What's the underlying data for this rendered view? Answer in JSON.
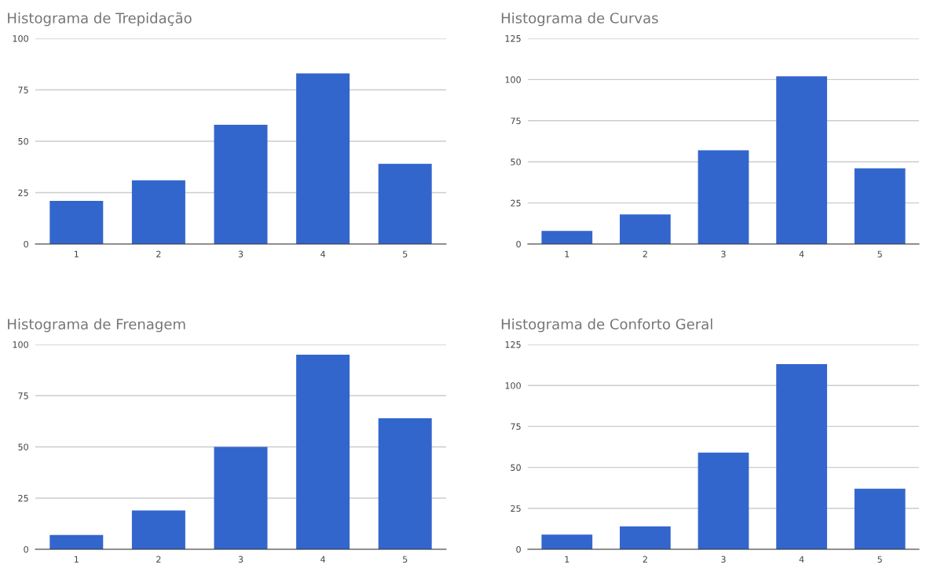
{
  "chart_data": [
    {
      "type": "bar",
      "title": "Histograma de Trepidação",
      "categories": [
        "1",
        "2",
        "3",
        "4",
        "5"
      ],
      "values": [
        21,
        31,
        58,
        83,
        39
      ],
      "color": "#3366cc",
      "ylim": [
        0,
        100
      ],
      "yticks": [
        0,
        25,
        50,
        75,
        100
      ],
      "grid": "y",
      "legend": false
    },
    {
      "type": "bar",
      "title": "Histograma de Curvas",
      "categories": [
        "1",
        "2",
        "3",
        "4",
        "5"
      ],
      "values": [
        8,
        18,
        57,
        102,
        46
      ],
      "color": "#3366cc",
      "ylim": [
        0,
        125
      ],
      "yticks": [
        0,
        25,
        50,
        75,
        100,
        125
      ],
      "grid": "y",
      "legend": false
    },
    {
      "type": "bar",
      "title": "Histograma de Frenagem",
      "categories": [
        "1",
        "2",
        "3",
        "4",
        "5"
      ],
      "values": [
        7,
        19,
        50,
        95,
        64
      ],
      "color": "#3366cc",
      "ylim": [
        0,
        100
      ],
      "yticks": [
        0,
        25,
        50,
        75,
        100
      ],
      "grid": "y",
      "legend": false
    },
    {
      "type": "bar",
      "title": "Histograma de Conforto Geral",
      "categories": [
        "1",
        "2",
        "3",
        "4",
        "5"
      ],
      "values": [
        9,
        14,
        59,
        113,
        37
      ],
      "color": "#3366cc",
      "ylim": [
        0,
        125
      ],
      "yticks": [
        0,
        25,
        50,
        75,
        100,
        125
      ],
      "grid": "y",
      "legend": false
    }
  ]
}
